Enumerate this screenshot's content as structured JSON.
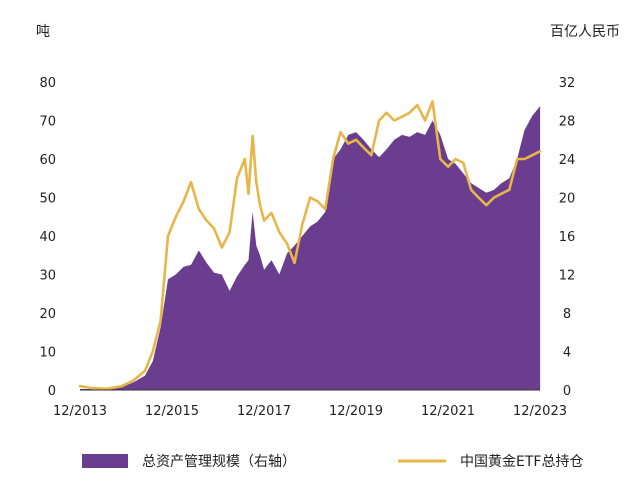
{
  "chart_data": {
    "type": "area",
    "left_axis": {
      "unit": "吨",
      "ticks": [
        0,
        10,
        20,
        30,
        40,
        50,
        60,
        70,
        80
      ],
      "ylim": [
        0,
        80
      ]
    },
    "right_axis": {
      "unit": "百亿人民币",
      "ticks": [
        0,
        4,
        8,
        12,
        16,
        20,
        24,
        28,
        32
      ],
      "ylim": [
        0,
        32
      ]
    },
    "x_ticks": [
      "12/2013",
      "12/2015",
      "12/2017",
      "12/2019",
      "12/2021",
      "12/2023"
    ],
    "x_range": [
      2013.917,
      2023.917
    ],
    "grid": false,
    "legend_position": "bottom",
    "series": [
      {
        "name": "总资产管理规模（右轴）",
        "kind": "area",
        "axis": "right",
        "color": "#6b3d8e",
        "x": [
          2013.92,
          2014.17,
          2014.5,
          2014.83,
          2015.08,
          2015.33,
          2015.5,
          2015.67,
          2015.83,
          2016.0,
          2016.17,
          2016.33,
          2016.5,
          2016.67,
          2016.83,
          2017.0,
          2017.17,
          2017.33,
          2017.5,
          2017.58,
          2017.67,
          2017.75,
          2017.83,
          2017.92,
          2018.08,
          2018.25,
          2018.42,
          2018.58,
          2018.75,
          2018.92,
          2019.08,
          2019.25,
          2019.42,
          2019.58,
          2019.75,
          2019.92,
          2020.08,
          2020.25,
          2020.42,
          2020.58,
          2020.75,
          2020.92,
          2021.08,
          2021.25,
          2021.42,
          2021.58,
          2021.75,
          2021.92,
          2022.08,
          2022.25,
          2022.42,
          2022.58,
          2022.75,
          2022.92,
          2023.08,
          2023.25,
          2023.42,
          2023.58,
          2023.75,
          2023.92
        ],
        "values": [
          0.1,
          0.1,
          0.1,
          0.3,
          0.8,
          1.5,
          3.0,
          6.5,
          11.5,
          12.0,
          12.8,
          13.0,
          14.5,
          13.2,
          12.2,
          12.0,
          10.3,
          11.8,
          13.0,
          13.5,
          18.5,
          15.0,
          14.0,
          12.5,
          13.5,
          12.0,
          14.2,
          15.0,
          16.0,
          17.0,
          17.5,
          18.5,
          24.0,
          25.0,
          26.5,
          26.8,
          26.0,
          25.0,
          24.2,
          25.0,
          26.0,
          26.5,
          26.3,
          26.8,
          26.5,
          28.0,
          26.5,
          24.0,
          23.5,
          22.5,
          21.5,
          21.0,
          20.5,
          20.8,
          21.5,
          22.0,
          24.0,
          27.0,
          28.5,
          29.5
        ]
      },
      {
        "name": "中国黄金ETF总持仓",
        "kind": "line",
        "axis": "left",
        "color": "#e6b649",
        "x": [
          2013.92,
          2014.17,
          2014.5,
          2014.83,
          2015.08,
          2015.33,
          2015.5,
          2015.67,
          2015.83,
          2016.0,
          2016.17,
          2016.33,
          2016.5,
          2016.67,
          2016.83,
          2017.0,
          2017.17,
          2017.33,
          2017.5,
          2017.58,
          2017.67,
          2017.75,
          2017.83,
          2017.92,
          2018.08,
          2018.25,
          2018.42,
          2018.58,
          2018.75,
          2018.92,
          2019.08,
          2019.25,
          2019.42,
          2019.58,
          2019.75,
          2019.92,
          2020.08,
          2020.25,
          2020.42,
          2020.58,
          2020.75,
          2020.92,
          2021.08,
          2021.25,
          2021.42,
          2021.58,
          2021.75,
          2021.92,
          2022.08,
          2022.25,
          2022.42,
          2022.58,
          2022.75,
          2022.92,
          2023.08,
          2023.25,
          2023.42,
          2023.58,
          2023.75,
          2023.92
        ],
        "values": [
          1.0,
          0.5,
          0.3,
          1.0,
          2.5,
          5.0,
          10.0,
          18.0,
          40.0,
          45.0,
          49.0,
          54.0,
          47.0,
          44.0,
          42.0,
          37.0,
          41.0,
          55.0,
          60.0,
          51.0,
          66.0,
          54.0,
          48.0,
          44.0,
          46.0,
          41.0,
          38.0,
          33.0,
          43.0,
          50.0,
          49.0,
          47.0,
          60.0,
          67.0,
          64.0,
          65.0,
          63.0,
          61.0,
          70.0,
          72.0,
          70.0,
          71.0,
          72.0,
          74.0,
          70.0,
          75.0,
          60.0,
          58.0,
          60.0,
          59.0,
          52.0,
          50.0,
          48.0,
          50.0,
          51.0,
          52.0,
          60.0,
          60.0,
          61.0,
          62.0
        ]
      }
    ]
  }
}
